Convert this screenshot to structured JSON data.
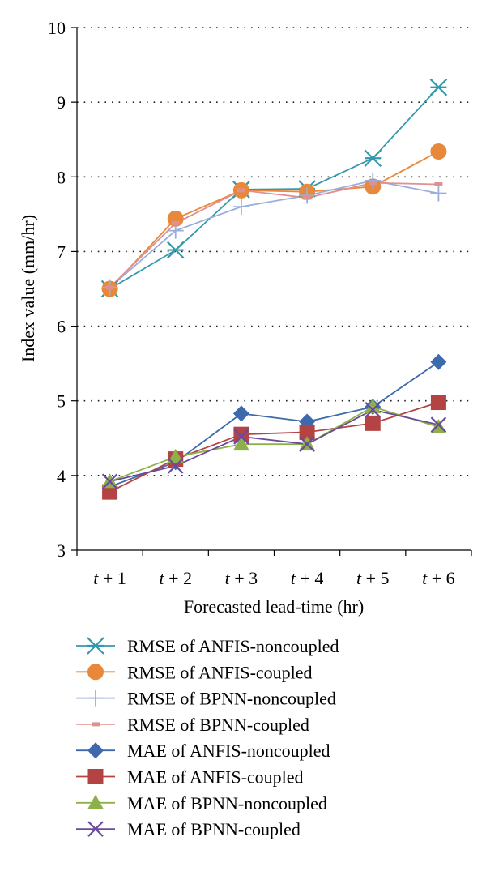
{
  "chart_data": {
    "type": "line",
    "title": "",
    "xlabel": "Forecasted lead-time (hr)",
    "ylabel": "Index value (mm/hr)",
    "categories": [
      "t + 1",
      "t + 2",
      "t + 3",
      "t + 4",
      "t + 5",
      "t + 6"
    ],
    "ylim": [
      3,
      10
    ],
    "yticks": [
      3,
      4,
      5,
      6,
      7,
      8,
      9,
      10
    ],
    "grid": "horizontal dotted",
    "legend_position": "bottom",
    "series": [
      {
        "name": "RMSE of ANFIS-noncoupled",
        "values": [
          6.5,
          7.02,
          7.83,
          7.84,
          8.25,
          9.2
        ],
        "color": "#3399aa",
        "marker": "asterisk"
      },
      {
        "name": "RMSE of ANFIS-coupled",
        "values": [
          6.5,
          7.44,
          7.82,
          7.8,
          7.87,
          8.34
        ],
        "color": "#e8883a",
        "marker": "circle"
      },
      {
        "name": "RMSE of BPNN-noncoupled",
        "values": [
          6.52,
          7.28,
          7.6,
          7.75,
          7.95,
          7.78
        ],
        "color": "#99aedc",
        "marker": "plus"
      },
      {
        "name": "RMSE of BPNN-coupled",
        "values": [
          6.52,
          7.38,
          7.82,
          7.72,
          7.92,
          7.9
        ],
        "color": "#e09090",
        "marker": "dash"
      },
      {
        "name": "MAE of ANFIS-noncoupled",
        "values": [
          3.85,
          4.18,
          4.83,
          4.72,
          4.92,
          5.52
        ],
        "color": "#3c6aad",
        "marker": "diamond"
      },
      {
        "name": "MAE of ANFIS-coupled",
        "values": [
          3.78,
          4.22,
          4.55,
          4.58,
          4.7,
          4.98
        ],
        "color": "#b44444",
        "marker": "square"
      },
      {
        "name": "MAE of BPNN-noncoupled",
        "values": [
          3.92,
          4.25,
          4.42,
          4.42,
          4.92,
          4.65
        ],
        "color": "#8db04a",
        "marker": "triangle"
      },
      {
        "name": "MAE of BPNN-coupled",
        "values": [
          3.92,
          4.13,
          4.52,
          4.42,
          4.88,
          4.68
        ],
        "color": "#6a4a9c",
        "marker": "x"
      }
    ]
  }
}
